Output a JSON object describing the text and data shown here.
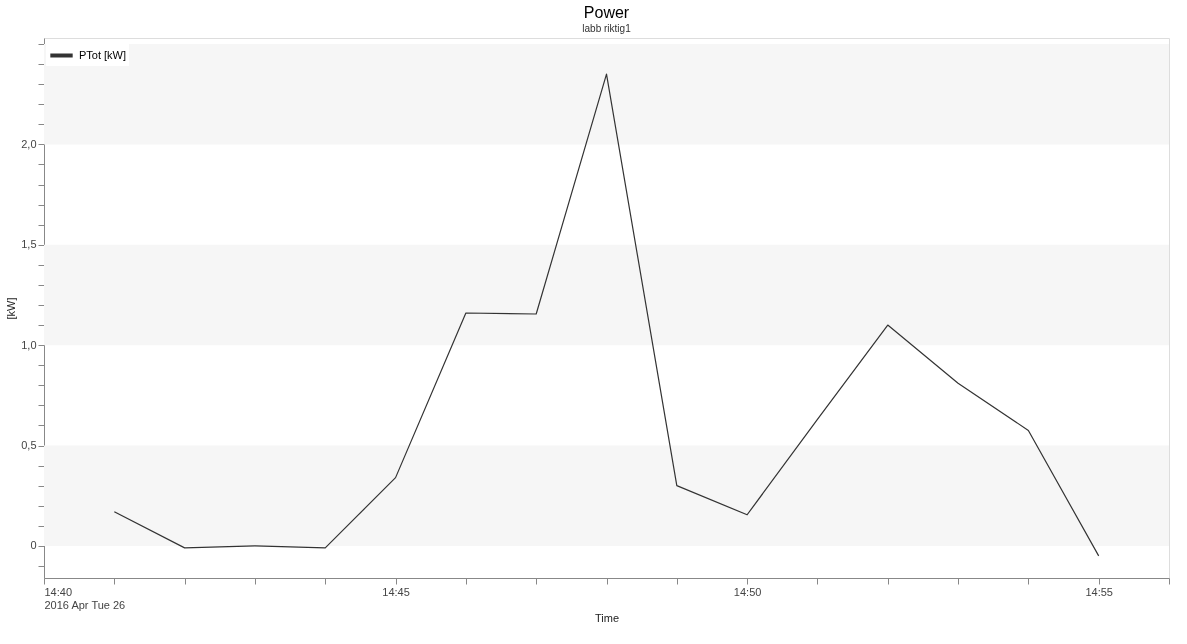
{
  "chart_data": {
    "type": "line",
    "title": "Power",
    "subtitle": "labb riktig1",
    "xlabel": "Time",
    "ylabel": "[kW]",
    "x": [
      "2016-04-26T14:41",
      "2016-04-26T14:42",
      "2016-04-26T14:43",
      "2016-04-26T14:44",
      "2016-04-26T14:45",
      "2016-04-26T14:46",
      "2016-04-26T14:47",
      "2016-04-26T14:48",
      "2016-04-26T14:49",
      "2016-04-26T14:50",
      "2016-04-26T14:51",
      "2016-04-26T14:52",
      "2016-04-26T14:53",
      "2016-04-26T14:54",
      "2016-04-26T14:55"
    ],
    "series": [
      {
        "name": "PTot [kW]",
        "color": "#333333",
        "values": [
          0.17,
          -0.01,
          0.0,
          -0.01,
          0.34,
          1.16,
          1.155,
          2.35,
          0.3,
          0.155,
          0.63,
          1.1,
          0.81,
          0.575,
          -0.05
        ]
      }
    ],
    "xlim": [
      "2016-04-26T14:40",
      "2016-04-26T14:56"
    ],
    "xticks": [
      {
        "value": "2016-04-26T14:40",
        "label": "14:40\n2016 Apr Tue 26"
      },
      {
        "value": "2016-04-26T14:41",
        "label": null
      },
      {
        "value": "2016-04-26T14:42",
        "label": null
      },
      {
        "value": "2016-04-26T14:43",
        "label": null
      },
      {
        "value": "2016-04-26T14:44",
        "label": null
      },
      {
        "value": "2016-04-26T14:45",
        "label": "14:45"
      },
      {
        "value": "2016-04-26T14:46",
        "label": null
      },
      {
        "value": "2016-04-26T14:47",
        "label": null
      },
      {
        "value": "2016-04-26T14:48",
        "label": null
      },
      {
        "value": "2016-04-26T14:49",
        "label": null
      },
      {
        "value": "2016-04-26T14:50",
        "label": "14:50"
      },
      {
        "value": "2016-04-26T14:51",
        "label": null
      },
      {
        "value": "2016-04-26T14:52",
        "label": null
      },
      {
        "value": "2016-04-26T14:53",
        "label": null
      },
      {
        "value": "2016-04-26T14:54",
        "label": null
      },
      {
        "value": "2016-04-26T14:55",
        "label": "14:55"
      },
      {
        "value": "2016-04-26T14:56",
        "label": null
      }
    ],
    "ylim": [
      -0.16,
      2.53
    ],
    "yticks": [
      {
        "value": -0.1,
        "label": null
      },
      {
        "value": 0,
        "label": "0"
      },
      {
        "value": 0.1,
        "label": null
      },
      {
        "value": 0.2,
        "label": null
      },
      {
        "value": 0.3,
        "label": null
      },
      {
        "value": 0.4,
        "label": null
      },
      {
        "value": 0.5,
        "label": "0,5"
      },
      {
        "value": 0.6,
        "label": null
      },
      {
        "value": 0.7,
        "label": null
      },
      {
        "value": 0.8,
        "label": null
      },
      {
        "value": 0.9,
        "label": null
      },
      {
        "value": 1.0,
        "label": "1,0"
      },
      {
        "value": 1.1,
        "label": null
      },
      {
        "value": 1.2,
        "label": null
      },
      {
        "value": 1.3,
        "label": null
      },
      {
        "value": 1.4,
        "label": null
      },
      {
        "value": 1.5,
        "label": "1,5"
      },
      {
        "value": 1.6,
        "label": null
      },
      {
        "value": 1.7,
        "label": null
      },
      {
        "value": 1.8,
        "label": null
      },
      {
        "value": 1.9,
        "label": null
      },
      {
        "value": 2.0,
        "label": "2,0"
      },
      {
        "value": 2.1,
        "label": null
      },
      {
        "value": 2.2,
        "label": null
      },
      {
        "value": 2.3,
        "label": null
      },
      {
        "value": 2.4,
        "label": null
      },
      {
        "value": 2.5,
        "label": null
      }
    ],
    "bands": [
      {
        "axis": "y",
        "from": 0,
        "to": 0.5,
        "color": "#f6f6f6"
      },
      {
        "axis": "y",
        "from": 1.0,
        "to": 1.5,
        "color": "#f6f6f6"
      },
      {
        "axis": "y",
        "from": 2.0,
        "to": 2.5,
        "color": "#f6f6f6"
      }
    ],
    "legend": "top left",
    "marker": "none",
    "line_style": "solid",
    "grid": false
  }
}
